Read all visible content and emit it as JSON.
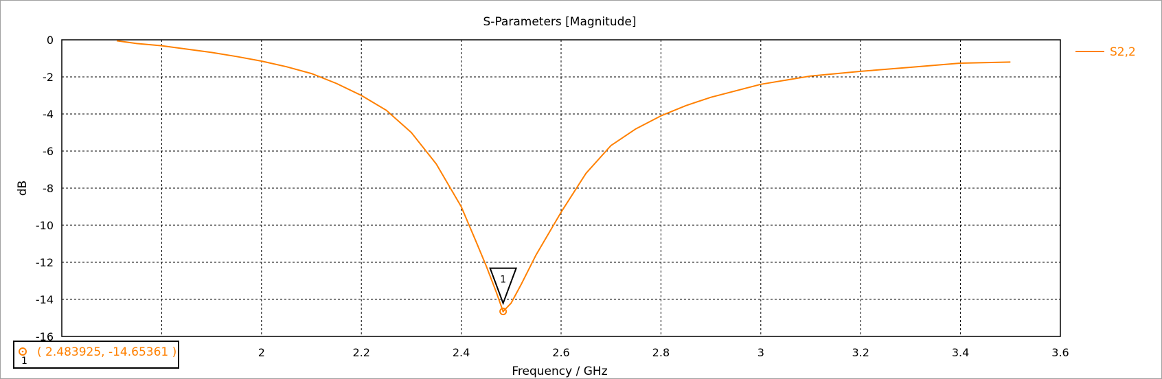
{
  "chart_data": {
    "type": "line",
    "title": "S-Parameters [Magnitude]",
    "xlabel": "Frequency / GHz",
    "ylabel": "dB",
    "xlim": [
      1.6,
      3.6
    ],
    "ylim": [
      -16,
      0
    ],
    "xticks": [
      1.6,
      1.8,
      2,
      2.2,
      2.4,
      2.6,
      2.8,
      3,
      3.2,
      3.4,
      3.6
    ],
    "xtick_labels": [
      "",
      "1.8",
      "2",
      "2.2",
      "2.4",
      "2.6",
      "2.8",
      "3",
      "3.2",
      "3.4",
      "3.6"
    ],
    "yticks": [
      0,
      -2,
      -4,
      -6,
      -8,
      -10,
      -12,
      -14,
      -16
    ],
    "ytick_labels": [
      "0",
      "-2",
      "-4",
      "-6",
      "-8",
      "-10",
      "-12",
      "-14",
      "-16"
    ],
    "grid": true,
    "legend_position": "top-right",
    "series": [
      {
        "name": "S2,2",
        "color": "#ff8000",
        "x": [
          1.71,
          1.75,
          1.8,
          1.85,
          1.9,
          1.95,
          2.0,
          2.05,
          2.1,
          2.15,
          2.2,
          2.25,
          2.3,
          2.35,
          2.4,
          2.43,
          2.45,
          2.47,
          2.483925,
          2.5,
          2.52,
          2.55,
          2.6,
          2.65,
          2.7,
          2.75,
          2.8,
          2.85,
          2.9,
          3.0,
          3.1,
          3.2,
          3.3,
          3.4,
          3.5
        ],
        "y": [
          -0.05,
          -0.2,
          -0.32,
          -0.5,
          -0.68,
          -0.9,
          -1.15,
          -1.45,
          -1.82,
          -2.35,
          -3.0,
          -3.8,
          -5.0,
          -6.7,
          -9.0,
          -10.9,
          -12.2,
          -13.6,
          -14.65,
          -14.2,
          -13.2,
          -11.6,
          -9.3,
          -7.2,
          -5.7,
          -4.8,
          -4.1,
          -3.55,
          -3.1,
          -2.4,
          -1.95,
          -1.7,
          -1.48,
          -1.26,
          -1.2
        ]
      }
    ],
    "markers": [
      {
        "id": "1",
        "x": 2.483925,
        "y": -14.65361,
        "label": "( 2.483925, -14.65361 )"
      }
    ]
  }
}
